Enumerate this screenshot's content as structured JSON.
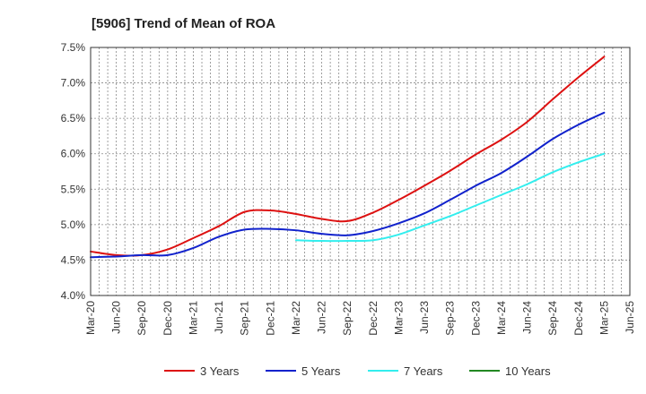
{
  "chart_data": {
    "type": "line",
    "title": "[5906]  Trend of Mean of ROA",
    "xlabel": "",
    "ylabel": "",
    "x": [
      "Mar-20",
      "Jun-20",
      "Sep-20",
      "Dec-20",
      "Mar-21",
      "Jun-21",
      "Sep-21",
      "Dec-21",
      "Mar-22",
      "Jun-22",
      "Sep-22",
      "Dec-22",
      "Mar-23",
      "Jun-23",
      "Sep-23",
      "Dec-23",
      "Mar-24",
      "Jun-24",
      "Sep-24",
      "Dec-24",
      "Mar-25",
      "Jun-25"
    ],
    "ylim": [
      4.0,
      7.5
    ],
    "yticks": [
      4.0,
      4.5,
      5.0,
      5.5,
      6.0,
      6.5,
      7.0,
      7.5
    ],
    "ytick_labels": [
      "4.0%",
      "4.5%",
      "5.0%",
      "5.5%",
      "6.0%",
      "6.5%",
      "7.0%",
      "7.5%"
    ],
    "grid": true,
    "legend_position": "bottom",
    "series": [
      {
        "name": "3 Years",
        "color": "#dd1111",
        "values": [
          4.62,
          4.57,
          4.57,
          4.65,
          4.81,
          4.98,
          5.18,
          5.2,
          5.15,
          5.08,
          5.05,
          5.17,
          5.35,
          5.55,
          5.76,
          5.99,
          6.2,
          6.45,
          6.77,
          7.08,
          7.37,
          null
        ]
      },
      {
        "name": "5 Years",
        "color": "#1122cc",
        "values": [
          4.54,
          4.55,
          4.57,
          4.57,
          4.67,
          4.83,
          4.93,
          4.94,
          4.92,
          4.87,
          4.85,
          4.91,
          5.02,
          5.16,
          5.35,
          5.55,
          5.73,
          5.96,
          6.21,
          6.41,
          6.58,
          null
        ]
      },
      {
        "name": "7 Years",
        "color": "#33eeee",
        "values": [
          null,
          null,
          null,
          null,
          null,
          null,
          null,
          null,
          4.78,
          4.77,
          4.77,
          4.78,
          4.86,
          4.99,
          5.12,
          5.27,
          5.42,
          5.57,
          5.74,
          5.88,
          6.0,
          null
        ]
      },
      {
        "name": "10 Years",
        "color": "#228822",
        "values": [
          null,
          null,
          null,
          null,
          null,
          null,
          null,
          null,
          null,
          null,
          null,
          null,
          null,
          null,
          null,
          null,
          null,
          null,
          null,
          null,
          null,
          null
        ]
      }
    ]
  }
}
